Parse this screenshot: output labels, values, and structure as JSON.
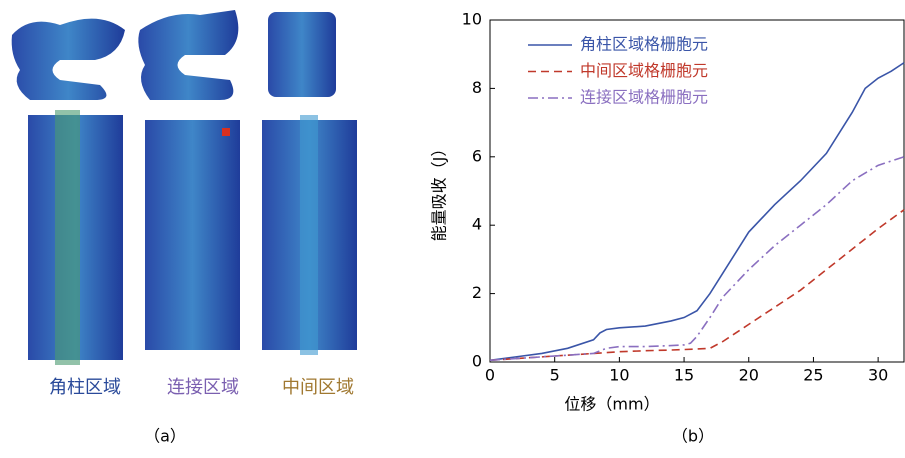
{
  "figure": {
    "labels": [
      "角柱区域",
      "连接区域",
      "中间区域"
    ],
    "caption_a": "（a）",
    "caption_b": "（b）"
  },
  "chart_data": {
    "type": "line",
    "xlabel": "位移（mm）",
    "ylabel": "能量吸收（J）",
    "xlim": [
      0,
      32
    ],
    "ylim": [
      0,
      10
    ],
    "xticks": [
      0,
      5,
      10,
      15,
      20,
      25,
      30
    ],
    "yticks": [
      0,
      2,
      4,
      6,
      8,
      10
    ],
    "legend": "upper-left",
    "series": [
      {
        "name": "角柱区域格栅胞元",
        "color": "#3a55a8",
        "dash": "solid",
        "x": [
          0,
          2,
          4,
          6,
          8,
          8.5,
          9,
          10,
          12,
          14,
          15,
          16,
          17,
          18,
          19,
          20,
          22,
          24,
          26,
          28,
          29,
          30,
          31,
          32
        ],
        "values": [
          0.05,
          0.15,
          0.25,
          0.4,
          0.65,
          0.85,
          0.95,
          1.0,
          1.05,
          1.2,
          1.3,
          1.5,
          2.0,
          2.6,
          3.2,
          3.8,
          4.6,
          5.3,
          6.1,
          7.3,
          8.0,
          8.3,
          8.5,
          8.75
        ]
      },
      {
        "name": "中间区域格栅胞元",
        "color": "#c0392b",
        "dash": "dashed",
        "x": [
          0,
          2,
          4,
          6,
          8,
          10,
          12,
          14,
          16,
          17,
          18,
          20,
          22,
          24,
          26,
          28,
          30,
          32
        ],
        "values": [
          0.05,
          0.1,
          0.15,
          0.2,
          0.25,
          0.3,
          0.33,
          0.35,
          0.38,
          0.4,
          0.6,
          1.1,
          1.6,
          2.1,
          2.7,
          3.3,
          3.9,
          4.45
        ]
      },
      {
        "name": "连接区域格栅胞元",
        "color": "#8a6fc0",
        "dash": "dashdot",
        "x": [
          0,
          2,
          4,
          6,
          8,
          9,
          10,
          12,
          14,
          15,
          15.5,
          16,
          17,
          18,
          20,
          22,
          24,
          26,
          28,
          30,
          32
        ],
        "values": [
          0.05,
          0.1,
          0.15,
          0.2,
          0.25,
          0.4,
          0.45,
          0.45,
          0.48,
          0.5,
          0.55,
          0.75,
          1.3,
          1.9,
          2.7,
          3.4,
          4.0,
          4.6,
          5.3,
          5.75,
          6.0
        ]
      }
    ]
  }
}
